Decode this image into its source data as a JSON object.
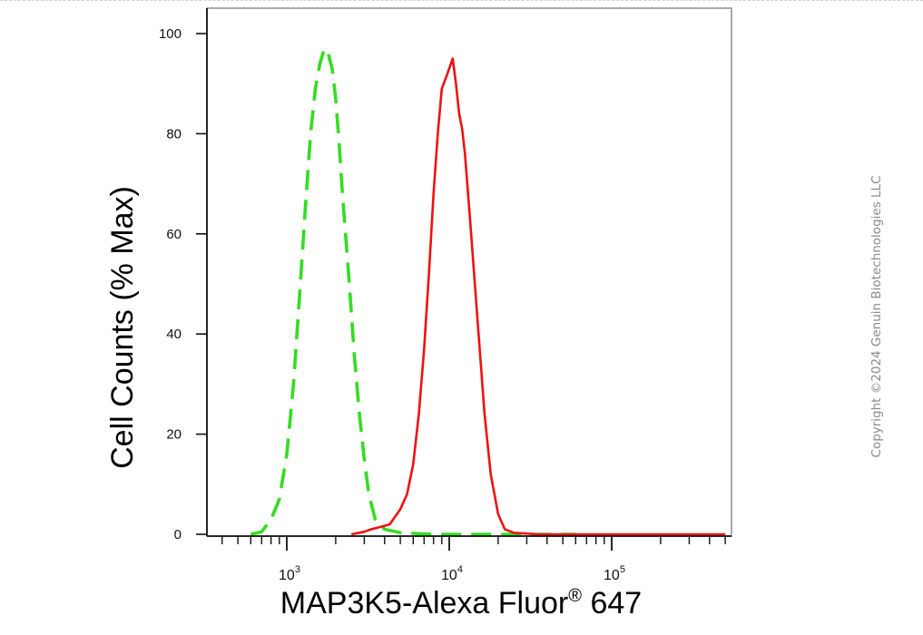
{
  "chart_data": {
    "type": "line",
    "xlabel": "MAP3K5-Alexa Fluor® 647",
    "xlabel_main": "MAP3K5-Alexa Fluor",
    "xlabel_sup": "®",
    "xlabel_tail": " 647",
    "ylabel": "Cell Counts (% Max)",
    "x_scale": "log",
    "xlim": [
      300,
      600000
    ],
    "ylim": [
      0,
      105
    ],
    "x_ticks": [
      {
        "value": 1000,
        "base": "10",
        "exp": "3"
      },
      {
        "value": 10000,
        "base": "10",
        "exp": "4"
      },
      {
        "value": 100000,
        "base": "10",
        "exp": "5"
      }
    ],
    "y_ticks": [
      0,
      20,
      40,
      60,
      80,
      100
    ],
    "grid": false,
    "legend": "none",
    "series": [
      {
        "style": "dashed",
        "color": "#33dd22",
        "points": [
          [
            600,
            0
          ],
          [
            700,
            0.5
          ],
          [
            800,
            3
          ],
          [
            900,
            7
          ],
          [
            1000,
            16
          ],
          [
            1100,
            30
          ],
          [
            1200,
            48
          ],
          [
            1300,
            65
          ],
          [
            1400,
            80
          ],
          [
            1500,
            89
          ],
          [
            1600,
            94
          ],
          [
            1700,
            97
          ],
          [
            1800,
            96
          ],
          [
            1900,
            93
          ],
          [
            2000,
            87
          ],
          [
            2100,
            78
          ],
          [
            2200,
            68
          ],
          [
            2400,
            52
          ],
          [
            2600,
            36
          ],
          [
            2800,
            24
          ],
          [
            3000,
            15
          ],
          [
            3200,
            8
          ],
          [
            3500,
            3
          ],
          [
            4000,
            1
          ],
          [
            5000,
            0.3
          ],
          [
            8000,
            0
          ],
          [
            20000,
            0
          ],
          [
            60000,
            0
          ]
        ]
      },
      {
        "style": "solid",
        "color": "#ee1111",
        "points": [
          [
            2500,
            0
          ],
          [
            3000,
            0.5
          ],
          [
            3300,
            1
          ],
          [
            3800,
            1.5
          ],
          [
            4300,
            2
          ],
          [
            5000,
            5
          ],
          [
            5500,
            8
          ],
          [
            6000,
            14
          ],
          [
            6500,
            24
          ],
          [
            7000,
            37
          ],
          [
            7500,
            52
          ],
          [
            8000,
            68
          ],
          [
            8500,
            80
          ],
          [
            9000,
            89
          ],
          [
            9500,
            91
          ],
          [
            10000,
            93
          ],
          [
            10500,
            95
          ],
          [
            11000,
            90
          ],
          [
            11500,
            84
          ],
          [
            12000,
            81
          ],
          [
            12500,
            76
          ],
          [
            13500,
            62
          ],
          [
            15000,
            42
          ],
          [
            16500,
            24
          ],
          [
            18000,
            12
          ],
          [
            20000,
            4
          ],
          [
            22000,
            1
          ],
          [
            25000,
            0.3
          ],
          [
            35000,
            0
          ],
          [
            100000,
            0
          ],
          [
            500000,
            0
          ]
        ]
      }
    ],
    "watermark": "Copyright ©2024 Genuin Biotechnologies LLC"
  }
}
